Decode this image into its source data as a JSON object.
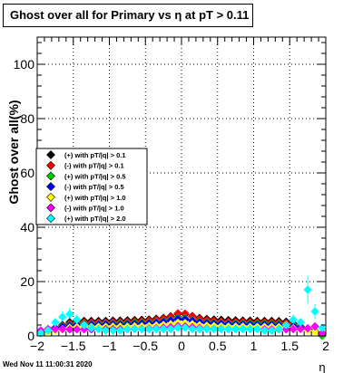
{
  "title": "Ghost over all for Primary vs  η at pT > 0.11",
  "timestamp": "Wed Nov 11 11:00:31 2020",
  "chart_data": {
    "type": "scatter",
    "xlabel": "η",
    "ylabel": "Ghost over all(%)",
    "xlim": [
      -2,
      2
    ],
    "ylim": [
      0,
      110
    ],
    "xticks": [
      "−2",
      "−1.5",
      "−1",
      "−0.5",
      "0",
      "0.5",
      "1",
      "1.5",
      "2"
    ],
    "yticks": [
      "0",
      "20",
      "40",
      "60",
      "80",
      "100"
    ],
    "grid": true,
    "legend_position": "left",
    "x": [
      -1.95,
      -1.85,
      -1.75,
      -1.65,
      -1.55,
      -1.45,
      -1.35,
      -1.25,
      -1.15,
      -1.05,
      -0.95,
      -0.85,
      -0.75,
      -0.65,
      -0.55,
      -0.45,
      -0.35,
      -0.25,
      -0.15,
      -0.05,
      0.05,
      0.15,
      0.25,
      0.35,
      0.45,
      0.55,
      0.65,
      0.75,
      0.85,
      0.95,
      1.05,
      1.15,
      1.25,
      1.35,
      1.45,
      1.55,
      1.65,
      1.75,
      1.85,
      1.95
    ],
    "series": [
      {
        "name": "(+) with pT/|q| > 0.1",
        "color": "#000000",
        "marker": "diamond",
        "values": [
          1,
          2,
          3,
          4,
          5,
          5.5,
          5.5,
          5.5,
          5.5,
          5.5,
          5.6,
          5.6,
          5.7,
          5.8,
          5.9,
          6,
          6.3,
          6.6,
          7.2,
          8,
          8,
          7.3,
          6.6,
          6.2,
          6,
          5.9,
          5.8,
          5.7,
          5.6,
          5.6,
          5.5,
          5.5,
          5.5,
          5.4,
          5.2,
          4.5,
          3.5,
          2.5,
          1.5,
          1
        ]
      },
      {
        "name": "(-) with pT/|q| > 0.1",
        "color": "#ff0000",
        "marker": "diamond",
        "values": [
          1,
          2,
          3,
          3.8,
          4.5,
          5,
          5,
          5,
          5,
          5,
          5.1,
          5.1,
          5.2,
          5.3,
          5.4,
          5.6,
          5.9,
          6.3,
          7,
          8.3,
          8.2,
          7.2,
          6.3,
          5.8,
          5.5,
          5.3,
          5.2,
          5.1,
          5.1,
          5,
          5,
          5,
          5,
          4.9,
          4.7,
          4.2,
          3.3,
          2.3,
          1.5,
          1
        ]
      },
      {
        "name": "(+) with pT/|q| > 0.5",
        "color": "#00cc00",
        "marker": "diamond",
        "values": [
          1.5,
          2.5,
          3,
          3.5,
          4,
          4.3,
          4.4,
          4.4,
          4.5,
          4.5,
          4.5,
          4.6,
          4.6,
          4.7,
          4.8,
          4.9,
          5.1,
          5.4,
          5.9,
          6.6,
          6.5,
          5.8,
          5.3,
          5,
          4.8,
          4.7,
          4.6,
          4.6,
          4.5,
          4.5,
          4.5,
          4.4,
          4.4,
          4.3,
          4.1,
          3.8,
          3.2,
          2.5,
          1.8,
          0
        ]
      },
      {
        "name": "(-) with pT/|q| > 0.5",
        "color": "#0000ff",
        "marker": "diamond",
        "values": [
          1.5,
          2.3,
          2.8,
          3.3,
          3.7,
          4,
          4.1,
          4.1,
          4.1,
          4.2,
          4.2,
          4.2,
          4.3,
          4.4,
          4.5,
          4.6,
          4.8,
          5.1,
          5.6,
          6.2,
          6.1,
          5.5,
          5,
          4.7,
          4.5,
          4.4,
          4.3,
          4.2,
          4.2,
          4.2,
          4.1,
          4.1,
          4.1,
          4,
          3.8,
          3.5,
          3,
          2.3,
          1.7,
          1
        ]
      },
      {
        "name": "(+) with pT/|q| > 1.0",
        "color": "#ffff00",
        "marker": "diamond",
        "values": [
          1,
          1.5,
          2,
          2.5,
          3,
          3.2,
          3.3,
          3.3,
          3.3,
          3.3,
          3.4,
          3.4,
          3.4,
          3.5,
          3.5,
          3.6,
          3.8,
          4,
          4.3,
          4.8,
          4.7,
          4.3,
          3.9,
          3.7,
          3.6,
          3.5,
          3.4,
          3.4,
          3.4,
          3.3,
          3.3,
          3.3,
          3.3,
          3.2,
          3,
          2.8,
          2.4,
          2,
          1.5,
          1
        ]
      },
      {
        "name": "(-) with pT/|q| > 1.0",
        "color": "#ff00ff",
        "marker": "diamond",
        "values": [
          2,
          2.5,
          2.5,
          2.5,
          2.4,
          2.4,
          2.4,
          2.4,
          2.5,
          2.5,
          2.5,
          2.5,
          2.5,
          2.6,
          2.6,
          2.7,
          2.8,
          3,
          3.2,
          3.6,
          3.5,
          3.2,
          2.9,
          2.7,
          2.6,
          2.6,
          2.5,
          2.5,
          2.5,
          2.5,
          2.5,
          2.4,
          2.4,
          2.4,
          2.4,
          2.5,
          2.6,
          2.8,
          3.5,
          1
        ]
      },
      {
        "name": "(+) with pT/|q| > 2.0",
        "color": "#00ffff",
        "marker": "diamond",
        "values": [
          1,
          2,
          5,
          7,
          8,
          6,
          4,
          3,
          2.5,
          2,
          2,
          2,
          2.5,
          2.5,
          2.5,
          2.5,
          2.5,
          2.5,
          2.5,
          3,
          3,
          2.5,
          2.5,
          2.5,
          2.5,
          2.5,
          2.5,
          2.5,
          2.5,
          2.5,
          2.5,
          2,
          2,
          2.5,
          4,
          6,
          5,
          17,
          9,
          3
        ]
      }
    ]
  }
}
